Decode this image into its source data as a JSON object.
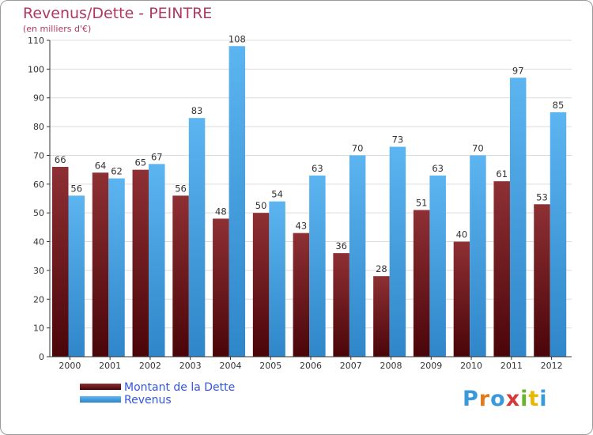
{
  "header": {
    "title": "Revenus/Dette - PEINTRE",
    "subtitle": "(en milliers d'€)"
  },
  "colors": {
    "debt_bar": "#7a1a1e",
    "revenue_bar": "#4aa3e6",
    "title": "#b03a5e",
    "legend_text": "#3355dd"
  },
  "chart_data": {
    "type": "bar",
    "title": "Revenus/Dette - PEINTRE",
    "ylabel": "(en milliers d'€)",
    "xlabel": "",
    "categories": [
      "2000",
      "2001",
      "2002",
      "2003",
      "2004",
      "2005",
      "2006",
      "2007",
      "2008",
      "2009",
      "2010",
      "2011",
      "2012"
    ],
    "series": [
      {
        "name": "Montant de la Dette",
        "color": "#7a1a1e",
        "values": [
          66,
          64,
          65,
          56,
          48,
          50,
          43,
          36,
          28,
          51,
          40,
          61,
          53
        ]
      },
      {
        "name": "Revenus",
        "color": "#4aa3e6",
        "values": [
          56,
          62,
          67,
          83,
          108,
          54,
          63,
          70,
          73,
          63,
          70,
          97,
          85
        ]
      }
    ],
    "ylim": [
      0,
      110
    ],
    "yticks": [
      0,
      10,
      20,
      30,
      40,
      50,
      60,
      70,
      80,
      90,
      100,
      110
    ],
    "grid": true,
    "legend_position": "bottom-left"
  },
  "legend": {
    "items": [
      {
        "label": "Montant de la Dette",
        "color": "#7a1a1e"
      },
      {
        "label": "Revenus",
        "color": "#4aa3e6"
      }
    ]
  },
  "logo": {
    "text": "Proxiti",
    "letter_colors": [
      "#3a9ad9",
      "#e07a1f",
      "#3a9ad9",
      "#d43a3a",
      "#6ab32e",
      "#e6b800",
      "#3a9ad9"
    ]
  }
}
